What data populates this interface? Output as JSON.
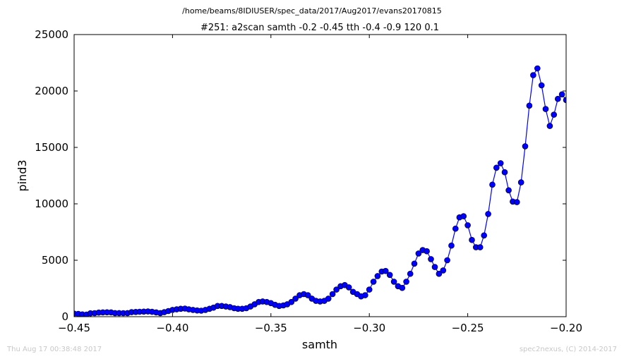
{
  "figure": {
    "file_path": "/home/beams/8IDIUSER/spec_data/2017/Aug2017/evans20170815",
    "scan_title": "#251: a2scan  samth -0.2 -0.45  tth -0.4 -0.9  120 0.1",
    "timestamp": "Thu Aug 17 00:38:48 2017",
    "credit": "spec2nexus, (C) 2014-2017",
    "series_color": "#0000ff",
    "marker_color": "#0000ff"
  },
  "chart_data": {
    "type": "line",
    "title": "#251: a2scan  samth -0.2 -0.45  tth -0.4 -0.9  120 0.1",
    "xlabel": "samth",
    "ylabel": "pind3",
    "xlim": [
      -0.45,
      -0.2
    ],
    "ylim": [
      0,
      25000
    ],
    "xticks": [
      "−0.45",
      "−0.40",
      "−0.35",
      "−0.30",
      "−0.25",
      "−0.20"
    ],
    "yticks": [
      "0",
      "5000",
      "10000",
      "15000",
      "20000",
      "25000"
    ],
    "grid": false,
    "markers": "circle",
    "series": [
      {
        "x": [
          -0.45,
          -0.4479,
          -0.4458,
          -0.4437,
          -0.4417,
          -0.4396,
          -0.4375,
          -0.4354,
          -0.4333,
          -0.4312,
          -0.4292,
          -0.4271,
          -0.425,
          -0.4229,
          -0.4208,
          -0.4187,
          -0.4167,
          -0.4146,
          -0.4125,
          -0.4104,
          -0.4083,
          -0.4062,
          -0.4042,
          -0.4021,
          -0.4,
          -0.3979,
          -0.3958,
          -0.3937,
          -0.3917,
          -0.3896,
          -0.3875,
          -0.3854,
          -0.3833,
          -0.3812,
          -0.3792,
          -0.3771,
          -0.375,
          -0.3729,
          -0.3708,
          -0.3687,
          -0.3667,
          -0.3646,
          -0.3625,
          -0.3604,
          -0.3583,
          -0.3562,
          -0.3542,
          -0.3521,
          -0.35,
          -0.3479,
          -0.3458,
          -0.3437,
          -0.3417,
          -0.3396,
          -0.3375,
          -0.3354,
          -0.3333,
          -0.3312,
          -0.3292,
          -0.3271,
          -0.325,
          -0.3229,
          -0.3208,
          -0.3187,
          -0.3167,
          -0.3146,
          -0.3125,
          -0.3104,
          -0.3083,
          -0.3062,
          -0.3042,
          -0.3021,
          -0.3,
          -0.2979,
          -0.2958,
          -0.2937,
          -0.2917,
          -0.2896,
          -0.2875,
          -0.2854,
          -0.2833,
          -0.2812,
          -0.2792,
          -0.2771,
          -0.275,
          -0.2729,
          -0.2708,
          -0.2687,
          -0.2667,
          -0.2646,
          -0.2625,
          -0.2604,
          -0.2583,
          -0.2562,
          -0.2542,
          -0.2521,
          -0.25,
          -0.2479,
          -0.2458,
          -0.2437,
          -0.2417,
          -0.2396,
          -0.2375,
          -0.2354,
          -0.2333,
          -0.2312,
          -0.2292,
          -0.2271,
          -0.225,
          -0.2229,
          -0.2208,
          -0.2187,
          -0.2167,
          -0.2146,
          -0.2125,
          -0.2104,
          -0.2083,
          -0.2062,
          -0.2042,
          -0.2021,
          -0.2
        ],
        "y": [
          270,
          250,
          200,
          190,
          300,
          310,
          360,
          380,
          390,
          380,
          320,
          320,
          310,
          320,
          400,
          420,
          440,
          450,
          460,
          430,
          380,
          320,
          400,
          500,
          600,
          650,
          700,
          720,
          650,
          600,
          550,
          530,
          600,
          700,
          800,
          950,
          950,
          900,
          850,
          750,
          700,
          700,
          750,
          900,
          1100,
          1300,
          1350,
          1300,
          1200,
          1050,
          950,
          1000,
          1100,
          1300,
          1600,
          1900,
          2000,
          1900,
          1600,
          1400,
          1350,
          1400,
          1600,
          2000,
          2400,
          2700,
          2800,
          2600,
          2200,
          2000,
          1800,
          1900,
          2400,
          3100,
          3600,
          4000,
          4050,
          3700,
          3100,
          2700,
          2550,
          3100,
          3800,
          4700,
          5600,
          5900,
          5800,
          5100,
          4400,
          3800,
          4100,
          5000,
          6300,
          7800,
          8800,
          8900,
          8100,
          6800,
          6150,
          6150,
          7200,
          9100,
          11700,
          13200,
          13600,
          12800,
          11200,
          10200,
          10150,
          11900,
          15100,
          18700,
          21400,
          22000,
          20500,
          18400,
          16900,
          17900,
          19300,
          19700,
          19200
        ]
      }
    ]
  }
}
